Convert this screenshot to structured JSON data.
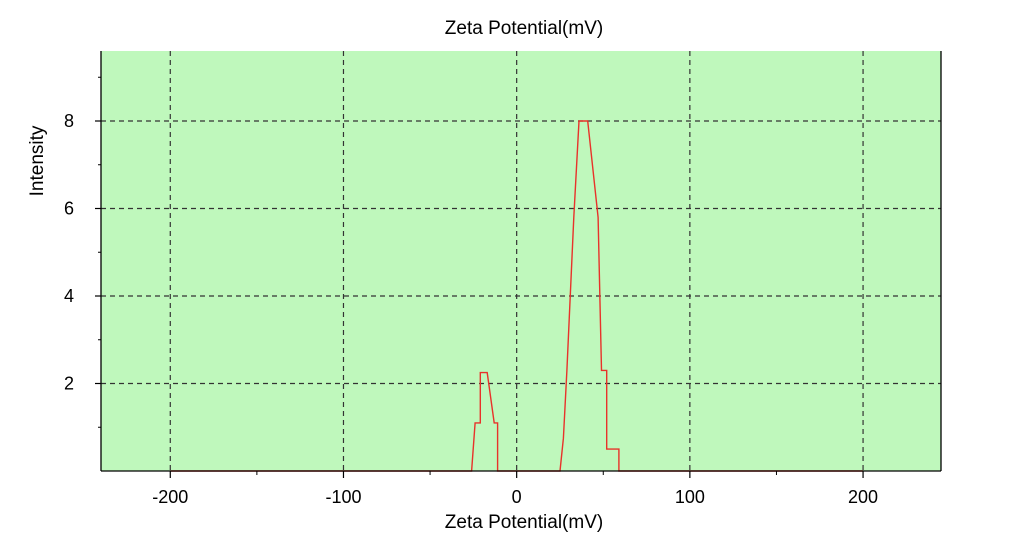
{
  "chart_data": {
    "type": "line",
    "title": "Zeta Potential(mV)",
    "xlabel": "Zeta Potential(mV)",
    "ylabel": "Intensity",
    "xlim": [
      -240,
      245
    ],
    "ylim": [
      0,
      9.6
    ],
    "x_ticks": [
      -200,
      -100,
      0,
      100,
      200
    ],
    "x_tick_labels": [
      "-200",
      "-100",
      "0",
      "100",
      "200"
    ],
    "y_ticks": [
      2,
      4,
      6,
      8
    ],
    "y_tick_labels": [
      "2",
      "4",
      "6",
      "8"
    ],
    "x_minor_ticks": [
      -150,
      -50,
      50,
      150
    ],
    "y_minor_ticks": [
      1,
      3,
      5,
      7,
      9
    ],
    "grid": true,
    "legend": "none",
    "colors": {
      "plot_background": "#bff8bc",
      "line": "#e8322a",
      "grid": "#333333",
      "frame": "#000000"
    },
    "series": [
      {
        "x": [
          -200,
          -27,
          -26,
          -24,
          -24,
          -21,
          -21,
          -17,
          -17,
          -13,
          -13,
          -11,
          -11,
          24,
          25,
          27,
          27,
          29,
          29,
          33,
          33,
          36,
          36,
          41,
          41,
          47,
          47,
          49,
          49,
          52,
          52,
          55,
          55,
          59,
          59,
          61,
          61,
          200
        ],
        "y": [
          0,
          0,
          0,
          1.1,
          1.1,
          1.1,
          2.25,
          2.25,
          2.25,
          1.1,
          1.1,
          1.1,
          0,
          0,
          0,
          0.75,
          0.75,
          2.3,
          2.3,
          5.8,
          5.8,
          8.0,
          8.0,
          8.0,
          8.0,
          5.8,
          5.8,
          2.3,
          2.3,
          2.3,
          0.5,
          0.5,
          0.5,
          0.5,
          0,
          0,
          0,
          0
        ]
      }
    ]
  }
}
